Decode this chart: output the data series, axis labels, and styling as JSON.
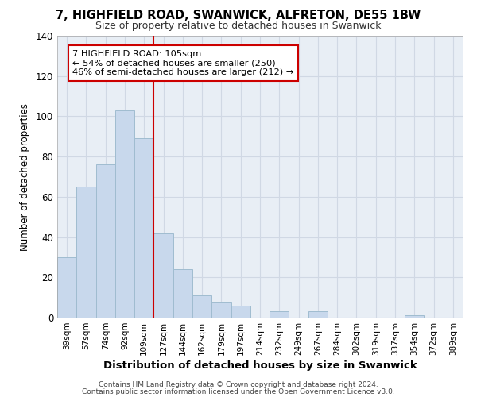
{
  "title": "7, HIGHFIELD ROAD, SWANWICK, ALFRETON, DE55 1BW",
  "subtitle": "Size of property relative to detached houses in Swanwick",
  "xlabel": "Distribution of detached houses by size in Swanwick",
  "ylabel": "Number of detached properties",
  "bar_color": "#c8d8ec",
  "bar_edge_color": "#a0bcd0",
  "vline_color": "#cc0000",
  "vline_x_index": 4,
  "categories": [
    "39sqm",
    "57sqm",
    "74sqm",
    "92sqm",
    "109sqm",
    "127sqm",
    "144sqm",
    "162sqm",
    "179sqm",
    "197sqm",
    "214sqm",
    "232sqm",
    "249sqm",
    "267sqm",
    "284sqm",
    "302sqm",
    "319sqm",
    "337sqm",
    "354sqm",
    "372sqm",
    "389sqm"
  ],
  "values": [
    30,
    65,
    76,
    103,
    89,
    42,
    24,
    11,
    8,
    6,
    0,
    3,
    0,
    3,
    0,
    0,
    0,
    0,
    1,
    0,
    0
  ],
  "ylim": [
    0,
    140
  ],
  "yticks": [
    0,
    20,
    40,
    60,
    80,
    100,
    120,
    140
  ],
  "annotation_title": "7 HIGHFIELD ROAD: 105sqm",
  "annotation_line1": "← 54% of detached houses are smaller (250)",
  "annotation_line2": "46% of semi-detached houses are larger (212) →",
  "annotation_box_color": "#ffffff",
  "annotation_box_edge": "#cc0000",
  "footer1": "Contains HM Land Registry data © Crown copyright and database right 2024.",
  "footer2": "Contains public sector information licensed under the Open Government Licence v3.0.",
  "background_color": "#ffffff",
  "grid_color": "#d0d8e4",
  "plot_bg_color": "#e8eef5"
}
